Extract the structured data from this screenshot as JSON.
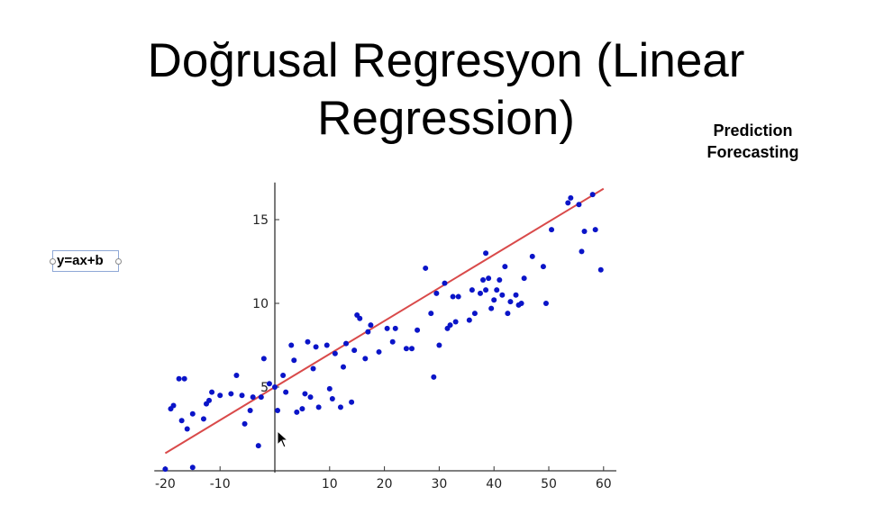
{
  "slide": {
    "title": "Doğrusal Regresyon (Linear Regression)",
    "notes": [
      "Prediction",
      "Forecasting"
    ],
    "formula": "y=ax+b"
  },
  "colors": {
    "points": "#0a14c8",
    "line": "#d94a4a",
    "axis": "#333333"
  },
  "chart_data": {
    "type": "scatter",
    "title": "",
    "xlabel": "",
    "ylabel": "",
    "xlim": [
      -22,
      62
    ],
    "ylim": [
      0,
      17
    ],
    "xticks": [
      -20,
      -10,
      10,
      20,
      30,
      40,
      50,
      60
    ],
    "xtick_labels": [
      "-20",
      "-10",
      "10",
      "20",
      "30",
      "40",
      "50",
      "60"
    ],
    "yticks": [
      5,
      10,
      15
    ],
    "ytick_labels": [
      "5",
      "10",
      "15"
    ],
    "grid": false,
    "legend": "none",
    "regression_line": {
      "slope": 0.1975,
      "intercept": 5.0,
      "x_range": [
        -20,
        60
      ]
    },
    "series": [
      {
        "points": [
          [
            -20,
            0.1
          ],
          [
            -15,
            0.2
          ],
          [
            -19,
            3.7
          ],
          [
            -18.5,
            3.9
          ],
          [
            -17.5,
            5.5
          ],
          [
            -16.5,
            5.5
          ],
          [
            -17,
            3.0
          ],
          [
            -16,
            2.5
          ],
          [
            -15,
            3.4
          ],
          [
            -13,
            3.1
          ],
          [
            -12.5,
            4.0
          ],
          [
            -12,
            4.2
          ],
          [
            -11.5,
            4.7
          ],
          [
            -10,
            4.5
          ],
          [
            -8,
            4.6
          ],
          [
            -7,
            5.7
          ],
          [
            -6,
            4.5
          ],
          [
            -5.5,
            2.8
          ],
          [
            -4.5,
            3.6
          ],
          [
            -4,
            4.4
          ],
          [
            -3,
            1.5
          ],
          [
            -2.5,
            4.4
          ],
          [
            -2,
            6.7
          ],
          [
            -1,
            5.2
          ],
          [
            0,
            5.0
          ],
          [
            0.5,
            3.6
          ],
          [
            1.5,
            5.7
          ],
          [
            2,
            4.7
          ],
          [
            3,
            7.5
          ],
          [
            3.5,
            6.6
          ],
          [
            4,
            3.5
          ],
          [
            5,
            3.7
          ],
          [
            5.5,
            4.6
          ],
          [
            6,
            7.7
          ],
          [
            6.5,
            4.4
          ],
          [
            7,
            6.1
          ],
          [
            7.5,
            7.4
          ],
          [
            8,
            3.8
          ],
          [
            9.5,
            7.5
          ],
          [
            10,
            4.9
          ],
          [
            10.5,
            4.3
          ],
          [
            11,
            7.0
          ],
          [
            12,
            3.8
          ],
          [
            12.5,
            6.2
          ],
          [
            13,
            7.6
          ],
          [
            14,
            4.1
          ],
          [
            14.5,
            7.2
          ],
          [
            15,
            9.3
          ],
          [
            15.5,
            9.1
          ],
          [
            16.5,
            6.7
          ],
          [
            17,
            8.3
          ],
          [
            17.5,
            8.7
          ],
          [
            19,
            7.1
          ],
          [
            20.5,
            8.5
          ],
          [
            21.5,
            7.7
          ],
          [
            22,
            8.5
          ],
          [
            24,
            7.3
          ],
          [
            25,
            7.3
          ],
          [
            26,
            8.4
          ],
          [
            27.5,
            12.1
          ],
          [
            28.5,
            9.4
          ],
          [
            29,
            5.6
          ],
          [
            29.5,
            10.6
          ],
          [
            30,
            7.5
          ],
          [
            31,
            11.2
          ],
          [
            31.5,
            8.5
          ],
          [
            32,
            8.7
          ],
          [
            32.5,
            10.4
          ],
          [
            33,
            8.9
          ],
          [
            33.5,
            10.4
          ],
          [
            35.5,
            9.0
          ],
          [
            36,
            10.8
          ],
          [
            36.5,
            9.4
          ],
          [
            37.5,
            10.6
          ],
          [
            38,
            11.4
          ],
          [
            38.5,
            10.8
          ],
          [
            38.5,
            13.0
          ],
          [
            39,
            11.5
          ],
          [
            39.5,
            9.7
          ],
          [
            40,
            10.2
          ],
          [
            40.5,
            10.8
          ],
          [
            41,
            11.4
          ],
          [
            41.5,
            10.5
          ],
          [
            42,
            12.2
          ],
          [
            42.5,
            9.4
          ],
          [
            43,
            10.1
          ],
          [
            44,
            10.5
          ],
          [
            44.5,
            9.9
          ],
          [
            45,
            10.0
          ],
          [
            45.5,
            11.5
          ],
          [
            47,
            12.8
          ],
          [
            49,
            12.2
          ],
          [
            49.5,
            10.0
          ],
          [
            50.5,
            14.4
          ],
          [
            53.5,
            16.0
          ],
          [
            54,
            16.3
          ],
          [
            55.5,
            15.9
          ],
          [
            56,
            13.1
          ],
          [
            56.5,
            14.3
          ],
          [
            58,
            16.5
          ],
          [
            58.5,
            14.4
          ],
          [
            59.5,
            12.0
          ]
        ]
      }
    ]
  }
}
